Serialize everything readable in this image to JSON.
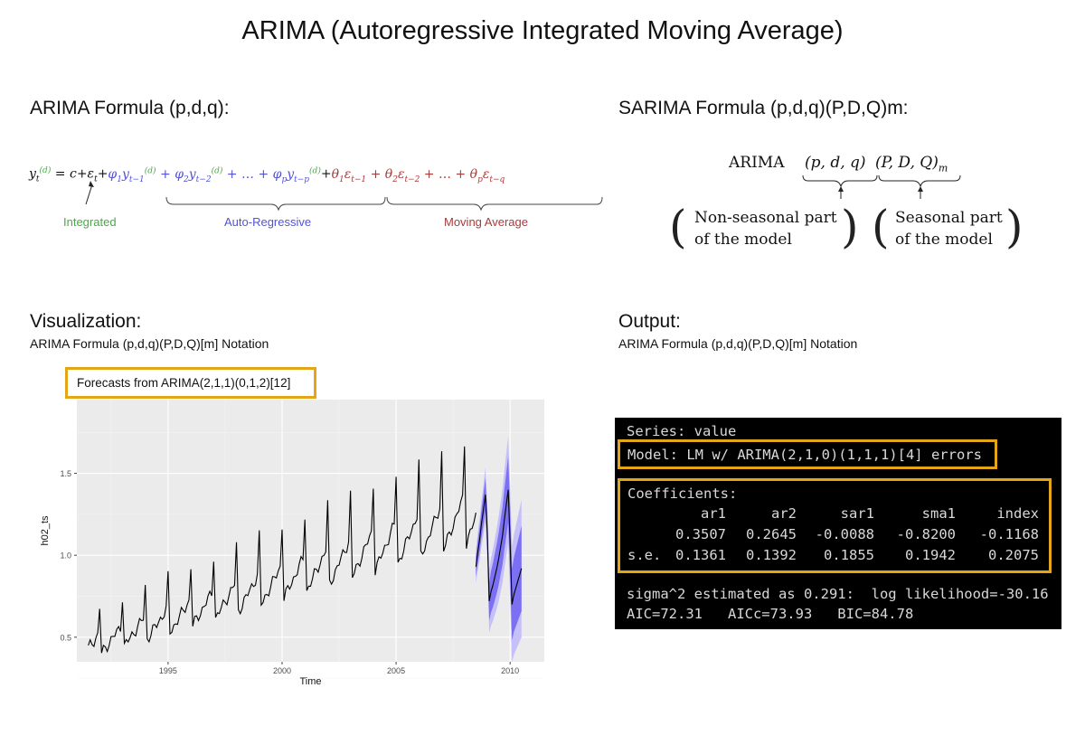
{
  "page": {
    "title": "ARIMA (Autoregressive Integrated Moving Average)"
  },
  "arima_section": {
    "title": "ARIMA Formula (p,d,q):",
    "labels": {
      "integrated": "Integrated",
      "autoregressive": "Auto-Regressive",
      "moving_average": "Moving Average"
    }
  },
  "sarima_section": {
    "title": "SARIMA Formula (p,d,q)(P,D,Q)m:",
    "arima_word": "ARIMA",
    "nonseasonal_tuple": "(p, d, q)",
    "seasonal_tuple": "(P, D, Q)",
    "seasonal_sub": "m",
    "nonseasonal_line1": "Non-seasonal part",
    "nonseasonal_line2": "of the model",
    "seasonal_line1": "Seasonal part",
    "seasonal_line2": "of the model"
  },
  "visualization": {
    "title": "Visualization:",
    "subtitle": "ARIMA Formula (p,d,q)(P,D,Q)[m] Notation",
    "caption": "Forecasts from ARIMA(2,1,1)(0,1,2)[12]"
  },
  "output": {
    "title": "Output:",
    "subtitle": "ARIMA Formula (p,d,q)(P,D,Q)[m] Notation",
    "series_line": "Series: value",
    "model_line": "Model: LM w/ ARIMA(2,1,0)(1,1,1)[4] errors",
    "coef_heading": "Coefficients:",
    "coef_headers": [
      "ar1",
      "ar2",
      "sar1",
      "sma1",
      "index"
    ],
    "coef_values": [
      "0.3507",
      "0.2645",
      "-0.0088",
      "-0.8200",
      "-0.1168"
    ],
    "se_label": "s.e.",
    "se_values": [
      "0.1361",
      "0.1392",
      "0.1855",
      "0.1942",
      "0.2075"
    ],
    "sigma_line": "sigma^2 estimated as 0.291:  log likelihood=-30.16",
    "aic_line": "AIC=72.31   AICc=73.93   BIC=84.78"
  },
  "chart_data": {
    "type": "line",
    "title": "",
    "xlabel": "Time",
    "ylabel": "h02_ts",
    "xlim": [
      1991.0,
      2011.5
    ],
    "ylim": [
      0.35,
      1.95
    ],
    "x_ticks": [
      1995,
      2000,
      2005,
      2010
    ],
    "y_ticks": [
      0.5,
      1.0,
      1.5
    ],
    "y_tick_labels": [
      "0.5",
      "1.0",
      "1.5"
    ],
    "grid": true,
    "background": "#ebebeb",
    "series": [
      {
        "kind": "history",
        "color": "#000000",
        "start_year": 1991.5,
        "base": 0.42,
        "trend_per_year": 0.042,
        "peak_jump": 0.2,
        "peak_jump_growth_per_year": 0.018
      },
      {
        "kind": "forecast",
        "color": "#000000",
        "x": [
          2008.5,
          2008.583,
          2008.667,
          2008.75,
          2008.833,
          2008.917,
          2009.0,
          2009.083,
          2009.167,
          2009.25,
          2009.333,
          2009.417,
          2009.5,
          2009.583,
          2009.667,
          2009.75,
          2009.833,
          2009.917,
          2010.0,
          2010.083,
          2010.167,
          2010.25,
          2010.333,
          2010.417,
          2010.5
        ],
        "y": [
          0.93,
          1.02,
          1.1,
          1.2,
          1.28,
          1.37,
          1.14,
          0.72,
          0.78,
          0.82,
          0.87,
          0.92,
          0.98,
          1.05,
          1.12,
          1.22,
          1.31,
          1.4,
          1.08,
          0.7,
          0.76,
          0.8,
          0.84,
          0.88,
          0.92
        ],
        "band80_color": "#7b6ff2",
        "band95_color": "#c6c0fa",
        "band80_halfwidth_start": 0.06,
        "band80_halfwidth_end": 0.26,
        "band95_halfwidth_start": 0.1,
        "band95_halfwidth_end": 0.42
      }
    ]
  },
  "colors": {
    "highlight": "#e3a619",
    "terminal_bg": "#000000",
    "integrated": "#4aa84a",
    "autoregressive": "#5252d6",
    "moving_average": "#a83a3a"
  }
}
